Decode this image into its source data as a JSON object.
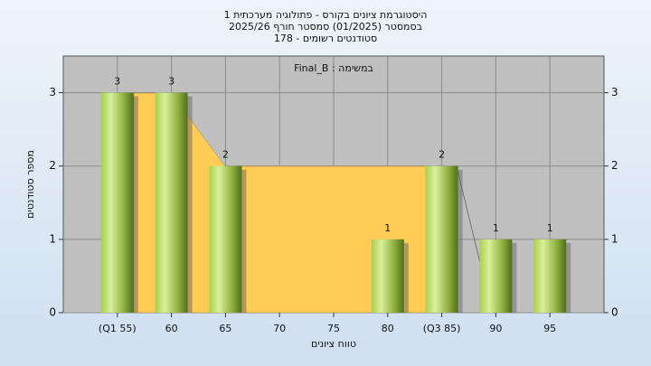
{
  "chart_data": {
    "type": "bar",
    "title": [
      "היסטוגרמת ציונים בקורס - פתולוגיה מערכתית 1",
      "בסמסטר (01/2025)  סמסטר חורף 2025/26",
      "סטודנטים רשומים - 178"
    ],
    "annotation": "Final_B : במשימה",
    "x_label": "טווח ציונים",
    "y_label": "מספר סטודנטים",
    "categories": [
      "(Q1 55)",
      "60",
      "65",
      "70",
      "75",
      "80",
      "(Q3 85)",
      "90",
      "95"
    ],
    "values": [
      3,
      3,
      2,
      0,
      0,
      1,
      2,
      1,
      1
    ],
    "ylim": [
      0,
      3.5
    ],
    "yticks": [
      0,
      1,
      2,
      3
    ],
    "y2lim": [
      0,
      3.5
    ],
    "y2ticks": [
      0,
      1,
      2,
      3
    ],
    "grid": true
  }
}
